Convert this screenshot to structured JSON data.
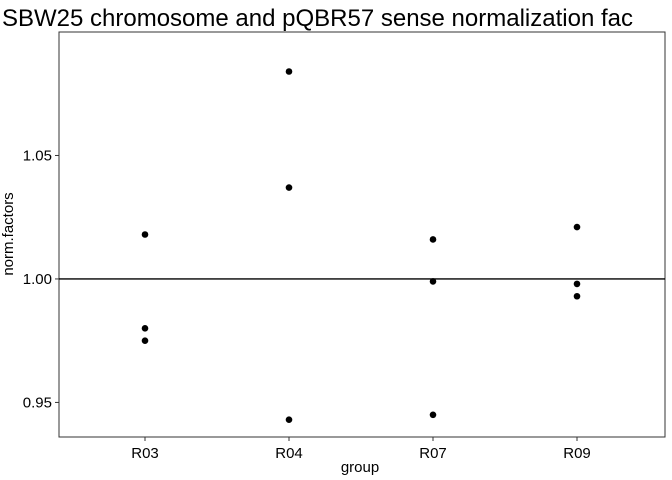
{
  "chart_data": {
    "type": "scatter",
    "title": "SBW25 chromosome and pQBR57 sense normalization fac",
    "xlabel": "group",
    "ylabel": "norm.factors",
    "categories": [
      "R03",
      "R04",
      "R07",
      "R09"
    ],
    "ylim": [
      0.936,
      1.1
    ],
    "yticks": [
      0.95,
      1.0,
      1.05
    ],
    "ytick_labels": [
      "0.95",
      "1.00",
      "1.05"
    ],
    "reference_line": 1.0,
    "grid": false,
    "points": [
      {
        "x": "R03",
        "y": 1.018
      },
      {
        "x": "R03",
        "y": 0.98
      },
      {
        "x": "R03",
        "y": 0.975
      },
      {
        "x": "R04",
        "y": 1.084
      },
      {
        "x": "R04",
        "y": 1.037
      },
      {
        "x": "R04",
        "y": 0.943
      },
      {
        "x": "R07",
        "y": 1.016
      },
      {
        "x": "R07",
        "y": 0.999
      },
      {
        "x": "R07",
        "y": 0.945
      },
      {
        "x": "R09",
        "y": 1.021
      },
      {
        "x": "R09",
        "y": 0.998
      },
      {
        "x": "R09",
        "y": 0.993
      }
    ],
    "colors": {
      "points": "#000000",
      "axis": "#333333",
      "reference_line": "#000000"
    }
  }
}
